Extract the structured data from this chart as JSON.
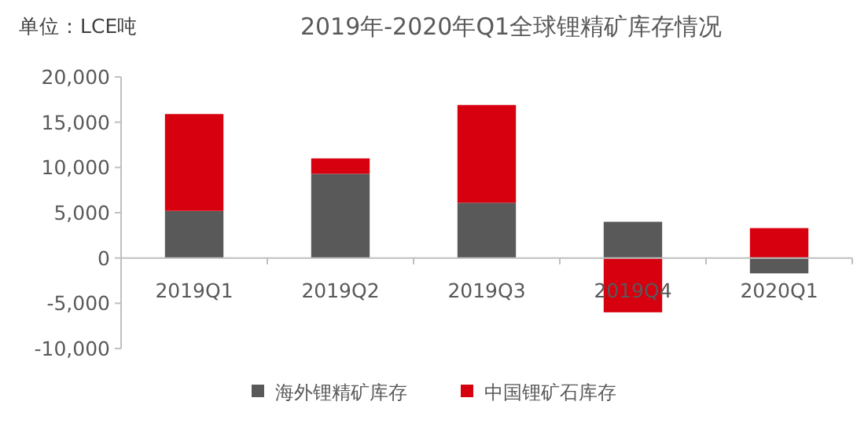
{
  "chart_data": {
    "type": "bar",
    "title": "2019年-2020年Q1全球锂精矿库存情况",
    "annotations": [
      "单位：LCE吨"
    ],
    "categories": [
      "2019Q1",
      "2019Q2",
      "2019Q3",
      "2019Q4",
      "2020Q1"
    ],
    "stacked": true,
    "series": [
      {
        "name": "海外锂精矿库存",
        "color": "#595959",
        "values": [
          5200,
          9300,
          6100,
          4000,
          -1700
        ]
      },
      {
        "name": "中国锂矿石库存",
        "color": "#d7000f",
        "values": [
          10700,
          1700,
          10800,
          -6000,
          3300
        ]
      }
    ],
    "ylim": [
      -10000,
      20000
    ],
    "yticks": [
      {
        "value": -10000,
        "label": "-10,000"
      },
      {
        "value": -5000,
        "label": "-5,000"
      },
      0,
      {
        "value": 5000,
        "label": "5,000"
      },
      {
        "value": 10000,
        "label": "10,000"
      },
      {
        "value": 15000,
        "label": "15,000"
      },
      {
        "value": 20000,
        "label": "20,000"
      }
    ],
    "grid": false,
    "legend": "bottom"
  }
}
